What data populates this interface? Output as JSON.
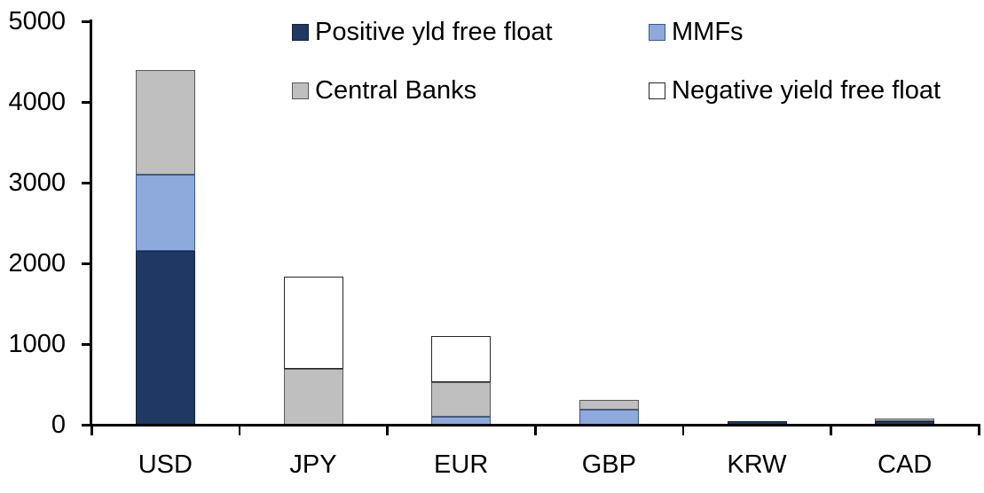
{
  "chart_data": {
    "type": "bar",
    "stacked": true,
    "title": "",
    "categories": [
      "USD",
      "JPY",
      "EUR",
      "GBP",
      "KRW",
      "CAD"
    ],
    "series": [
      {
        "name": "Positive yld free float",
        "color": "#1F3864",
        "border_color": "#16233f",
        "values": [
          2150,
          0,
          0,
          0,
          40,
          40
        ]
      },
      {
        "name": "MMFs",
        "color": "#8EA9DB",
        "border_color": "#3a5a94",
        "values": [
          950,
          0,
          100,
          190,
          0,
          0
        ]
      },
      {
        "name": "Central Banks",
        "color": "#BFBFBF",
        "border_color": "#595959",
        "values": [
          1300,
          690,
          430,
          120,
          0,
          40
        ]
      },
      {
        "name": "Negative yield free float",
        "color": "#FFFFFF",
        "border_color": "#262626",
        "values": [
          0,
          1140,
          570,
          0,
          0,
          0
        ]
      }
    ],
    "totals": {
      "USD": 4400,
      "JPY": 1830,
      "EUR": 1100,
      "GBP": 310,
      "KRW": 40,
      "CAD": 80
    },
    "xlabel": "",
    "ylabel": "",
    "ylim": [
      0,
      5000
    ],
    "yticks": [
      0,
      1000,
      2000,
      3000,
      4000,
      5000
    ],
    "grid": false,
    "legend_position": "top",
    "legend_layout": "two-column two-row",
    "axis_color": "#000000",
    "background_color": "#ffffff"
  }
}
